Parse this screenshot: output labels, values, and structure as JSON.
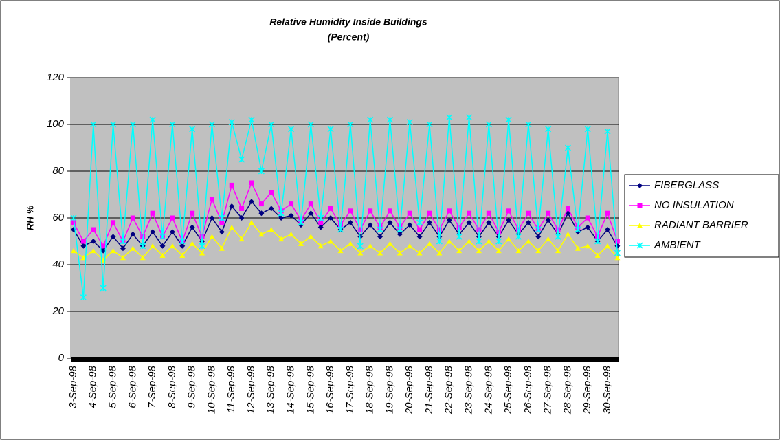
{
  "chart_data": {
    "type": "line",
    "title": "Relative Humidity Inside Buildings",
    "subtitle": "(Percent)",
    "y_label": "RH %",
    "categories": [
      "3-Sep-98",
      null,
      "4-Sep-98",
      null,
      "5-Sep-98",
      null,
      "6-Sep-98",
      null,
      "7-Sep-98",
      null,
      "8-Sep-98",
      null,
      "9-Sep-98",
      null,
      "10-Sep-98",
      null,
      "11-Sep-98",
      null,
      "12-Sep-98",
      null,
      "13-Sep-98",
      null,
      "14-Sep-98",
      null,
      "15-Sep-98",
      null,
      "16-Sep-98",
      null,
      "17-Sep-98",
      null,
      "18-Sep-98",
      null,
      "19-Sep-98",
      null,
      "20-Sep-98",
      null,
      "21-Sep-98",
      null,
      "22-Sep-98",
      null,
      "23-Sep-98",
      null,
      "24-Sep-98",
      null,
      "25-Sep-98",
      null,
      "26-Sep-98",
      null,
      "27-Sep-98",
      null,
      "28-Sep-98",
      null,
      "29-Sep-98",
      null,
      "30-Sep-98",
      null
    ],
    "series": [
      {
        "name": "FIBERGLASS",
        "color": "#000080",
        "marker": "diamond",
        "values": [
          55,
          48,
          50,
          46,
          52,
          47,
          53,
          48,
          54,
          48,
          54,
          48,
          56,
          50,
          60,
          54,
          65,
          60,
          67,
          62,
          64,
          60,
          61,
          57,
          62,
          56,
          60,
          55,
          58,
          52,
          57,
          52,
          58,
          53,
          57,
          52,
          58,
          52,
          59,
          53,
          58,
          52,
          58,
          52,
          59,
          53,
          58,
          52,
          59,
          53,
          62,
          54,
          56,
          50,
          55,
          48
        ]
      },
      {
        "name": "NO INSULATION",
        "color": "#ff00ff",
        "marker": "square",
        "values": [
          58,
          50,
          55,
          48,
          58,
          50,
          60,
          52,
          62,
          52,
          60,
          50,
          62,
          52,
          68,
          58,
          74,
          64,
          75,
          66,
          71,
          63,
          66,
          59,
          66,
          58,
          64,
          57,
          63,
          55,
          63,
          56,
          63,
          56,
          62,
          55,
          62,
          55,
          63,
          56,
          62,
          55,
          62,
          54,
          63,
          55,
          62,
          55,
          62,
          55,
          64,
          56,
          60,
          52,
          62,
          50
        ]
      },
      {
        "name": "RADIANT BARRIER",
        "color": "#ffff00",
        "marker": "triangle",
        "values": [
          46,
          43,
          46,
          42,
          46,
          43,
          47,
          43,
          48,
          44,
          48,
          44,
          49,
          45,
          52,
          47,
          56,
          51,
          58,
          53,
          55,
          51,
          53,
          49,
          52,
          48,
          50,
          46,
          49,
          45,
          48,
          45,
          49,
          45,
          48,
          45,
          49,
          45,
          50,
          46,
          50,
          46,
          50,
          46,
          51,
          46,
          50,
          46,
          51,
          46,
          53,
          47,
          48,
          44,
          48,
          43
        ]
      },
      {
        "name": "AMBIENT",
        "color": "#00ffff",
        "marker": "x",
        "values": [
          60,
          26,
          100,
          30,
          100,
          50,
          100,
          48,
          102,
          52,
          100,
          50,
          98,
          48,
          100,
          60,
          101,
          85,
          102,
          80,
          100,
          62,
          98,
          58,
          100,
          60,
          98,
          55,
          100,
          48,
          102,
          55,
          102,
          55,
          101,
          58,
          100,
          50,
          103,
          52,
          103,
          50,
          100,
          50,
          102,
          52,
          100,
          55,
          98,
          52,
          90,
          55,
          98,
          50,
          97,
          45
        ]
      }
    ],
    "ylim": [
      0,
      120
    ],
    "yticks": [
      0,
      20,
      40,
      60,
      80,
      100,
      120
    ],
    "grid": true,
    "legend": "right"
  }
}
